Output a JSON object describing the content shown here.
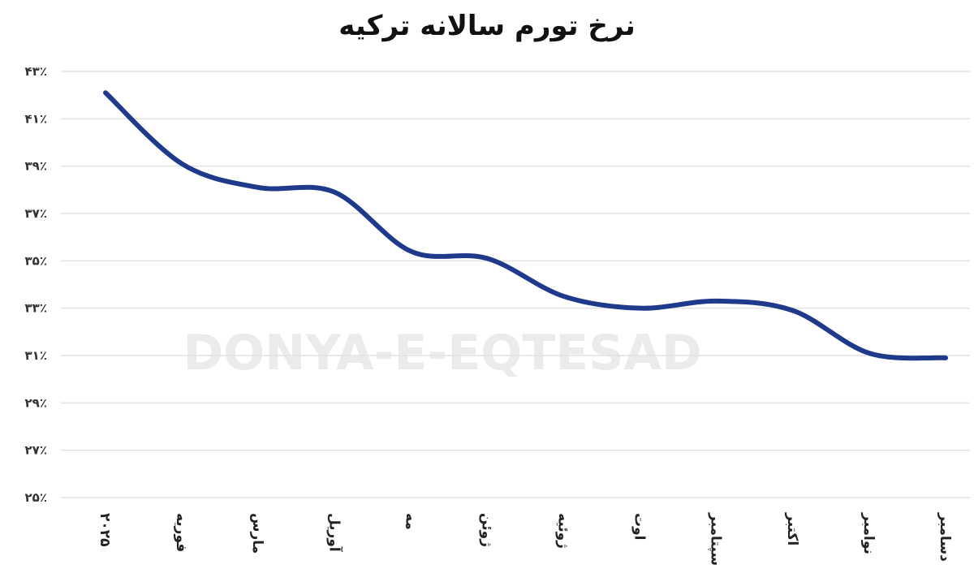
{
  "chart_data": {
    "type": "line",
    "title": "نرخ تورم سالانه ترکیه",
    "xlabel": "",
    "ylabel": "",
    "categories": [
      "۲۰۲۵",
      "فوریه",
      "مارس",
      "آوریل",
      "مه",
      "ژوئن",
      "ژوئیه",
      "اوت",
      "سپتامبر",
      "اکتبر",
      "نوامبر",
      "دسامبر"
    ],
    "values": [
      42.1,
      39.1,
      38.1,
      37.9,
      35.4,
      35.1,
      33.5,
      33.0,
      33.3,
      32.9,
      31.1,
      30.9
    ],
    "ylim": [
      25,
      43
    ],
    "yticks": [
      43,
      41,
      39,
      37,
      35,
      33,
      31,
      29,
      27,
      25
    ],
    "ytick_labels": [
      "۴۳٪",
      "۴۱٪",
      "۳۹٪",
      "۳۷٪",
      "۳۵٪",
      "۳۳٪",
      "۳۱٪",
      "۲۹٪",
      "۲۷٪",
      "۲۵٪"
    ],
    "grid": true,
    "line_color": "#1f3a8a",
    "smooth": true
  },
  "watermark": "DONYA-E-EQTESAD"
}
